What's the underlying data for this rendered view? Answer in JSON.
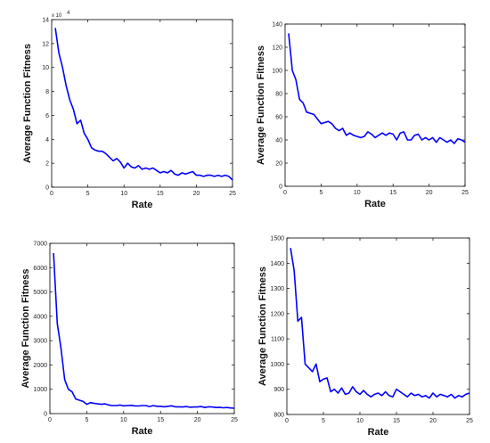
{
  "chart_data": [
    {
      "type": "line",
      "title": "",
      "xlabel": "Rate",
      "ylabel": "Average Function Fitness",
      "xlim": [
        0,
        25
      ],
      "ylim": [
        0,
        14
      ],
      "xticks": [
        0,
        5,
        10,
        15,
        20,
        25
      ],
      "yticks": [
        0,
        2,
        4,
        6,
        8,
        10,
        12,
        14
      ],
      "y_multiplier_label": "x 10",
      "y_multiplier_exp": "4",
      "grid": false,
      "line_color": "#0000ff",
      "series": [
        {
          "x": [
            0.5,
            1,
            1.5,
            2,
            2.5,
            3,
            3.5,
            4,
            4.5,
            5,
            5.5,
            6,
            6.5,
            7,
            7.5,
            8,
            8.5,
            9,
            9.5,
            10,
            10.5,
            11,
            11.5,
            12,
            12.5,
            13,
            13.5,
            14,
            14.5,
            15,
            15.5,
            16,
            16.5,
            17,
            17.5,
            18,
            18.5,
            19,
            19.5,
            20,
            20.5,
            21,
            21.5,
            22,
            22.5,
            23,
            23.5,
            24,
            24.5,
            25
          ],
          "values": [
            13.3,
            11.2,
            10.0,
            8.5,
            7.3,
            6.5,
            5.3,
            5.6,
            4.5,
            4.0,
            3.3,
            3.1,
            3.0,
            3.0,
            2.8,
            2.5,
            2.2,
            2.4,
            2.1,
            1.6,
            2.0,
            1.7,
            1.6,
            1.8,
            1.5,
            1.6,
            1.5,
            1.6,
            1.4,
            1.2,
            1.3,
            1.2,
            1.4,
            1.1,
            1.0,
            1.2,
            1.1,
            1.2,
            1.3,
            1.0,
            1.0,
            0.9,
            1.0,
            1.0,
            0.9,
            1.0,
            0.9,
            1.0,
            0.9,
            0.6
          ]
        }
      ]
    },
    {
      "type": "line",
      "title": "",
      "xlabel": "Rate",
      "ylabel": "Average Function Fitness",
      "xlim": [
        0,
        25
      ],
      "ylim": [
        0,
        140
      ],
      "xticks": [
        0,
        5,
        10,
        15,
        20,
        25
      ],
      "yticks": [
        0,
        20,
        40,
        60,
        80,
        100,
        120,
        140
      ],
      "grid": false,
      "line_color": "#0000ff",
      "series": [
        {
          "x": [
            0.5,
            1,
            1.5,
            2,
            2.5,
            3,
            3.5,
            4,
            4.5,
            5,
            5.5,
            6,
            6.5,
            7,
            7.5,
            8,
            8.5,
            9,
            9.5,
            10,
            10.5,
            11,
            11.5,
            12,
            12.5,
            13,
            13.5,
            14,
            14.5,
            15,
            15.5,
            16,
            16.5,
            17,
            17.5,
            18,
            18.5,
            19,
            19.5,
            20,
            20.5,
            21,
            21.5,
            22,
            22.5,
            23,
            23.5,
            24,
            24.5,
            25
          ],
          "values": [
            132,
            100,
            92,
            75,
            72,
            64,
            63,
            62,
            58,
            54,
            55,
            56,
            54,
            50,
            48,
            50,
            44,
            46,
            44,
            43,
            42,
            43,
            47,
            45,
            42,
            44,
            46,
            44,
            46,
            45,
            40,
            46,
            47,
            40,
            40,
            44,
            45,
            40,
            42,
            40,
            42,
            38,
            42,
            40,
            38,
            40,
            37,
            41,
            40,
            38
          ]
        }
      ]
    },
    {
      "type": "line",
      "title": "",
      "xlabel": "Rate",
      "ylabel": "Average Function Fitness",
      "xlim": [
        0,
        25
      ],
      "ylim": [
        0,
        7000
      ],
      "xticks": [
        0,
        5,
        10,
        15,
        20,
        25
      ],
      "yticks": [
        0,
        1000,
        2000,
        3000,
        4000,
        5000,
        6000,
        7000
      ],
      "grid": false,
      "line_color": "#0000ff",
      "series": [
        {
          "x": [
            0.5,
            1,
            1.5,
            2,
            2.5,
            3,
            3.5,
            4,
            4.5,
            5,
            5.5,
            6,
            6.5,
            7,
            7.5,
            8,
            8.5,
            9,
            9.5,
            10,
            10.5,
            11,
            11.5,
            12,
            12.5,
            13,
            13.5,
            14,
            14.5,
            15,
            15.5,
            16,
            16.5,
            17,
            17.5,
            18,
            18.5,
            19,
            19.5,
            20,
            20.5,
            21,
            21.5,
            22,
            22.5,
            23,
            23.5,
            24,
            24.5,
            25
          ],
          "values": [
            6600,
            3700,
            2700,
            1400,
            1000,
            900,
            600,
            550,
            500,
            380,
            450,
            420,
            400,
            380,
            400,
            350,
            330,
            330,
            350,
            320,
            330,
            340,
            320,
            310,
            330,
            330,
            290,
            330,
            300,
            300,
            280,
            300,
            320,
            280,
            280,
            270,
            290,
            260,
            270,
            270,
            290,
            250,
            280,
            270,
            250,
            260,
            240,
            250,
            230,
            220
          ]
        }
      ]
    },
    {
      "type": "line",
      "title": "",
      "xlabel": "Rate",
      "ylabel": "Average Function Fitness",
      "xlim": [
        0,
        25
      ],
      "ylim": [
        800,
        1500
      ],
      "xticks": [
        0,
        5,
        10,
        15,
        20,
        25
      ],
      "yticks": [
        800,
        900,
        1000,
        1100,
        1200,
        1300,
        1400,
        1500
      ],
      "grid": false,
      "line_color": "#0000ff",
      "series": [
        {
          "x": [
            0.5,
            1,
            1.5,
            2,
            2.5,
            3,
            3.5,
            4,
            4.5,
            5,
            5.5,
            6,
            6.5,
            7,
            7.5,
            8,
            8.5,
            9,
            9.5,
            10,
            10.5,
            11,
            11.5,
            12,
            12.5,
            13,
            13.5,
            14,
            14.5,
            15,
            15.5,
            16,
            16.5,
            17,
            17.5,
            18,
            18.5,
            19,
            19.5,
            20,
            20.5,
            21,
            21.5,
            22,
            22.5,
            23,
            23.5,
            24,
            24.5,
            25
          ],
          "values": [
            1460,
            1370,
            1170,
            1185,
            1000,
            985,
            970,
            1000,
            930,
            940,
            945,
            890,
            900,
            885,
            905,
            880,
            885,
            910,
            890,
            880,
            895,
            880,
            870,
            880,
            885,
            875,
            890,
            875,
            870,
            900,
            890,
            880,
            870,
            885,
            875,
            880,
            870,
            875,
            865,
            885,
            870,
            880,
            875,
            870,
            880,
            865,
            875,
            870,
            880,
            885
          ]
        }
      ]
    }
  ]
}
